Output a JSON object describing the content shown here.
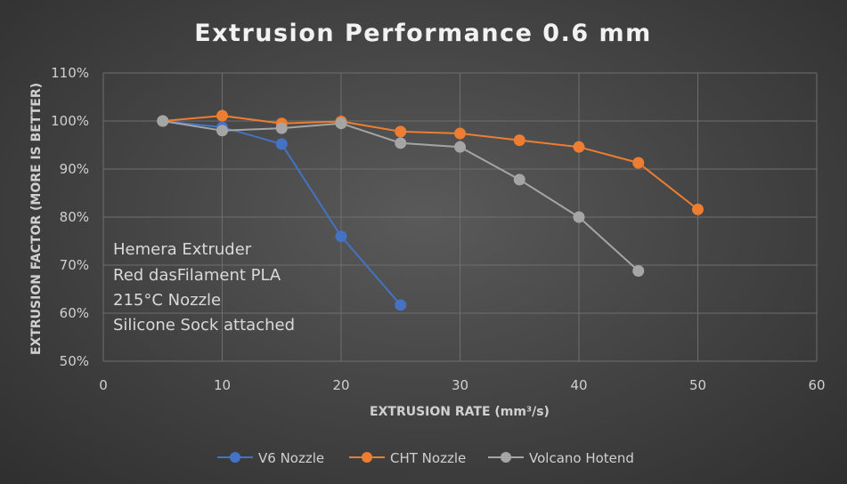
{
  "chart_data": {
    "type": "line",
    "title": "Extrusion Performance 0.6 mm",
    "xlabel": "EXTRUSION RATE (mm³/s)",
    "ylabel": "EXTRUSION FACTOR (MORE IS BETTER)",
    "xlim": [
      0,
      60
    ],
    "ylim": [
      50,
      110
    ],
    "xticks": [
      "0",
      "10",
      "20",
      "30",
      "40",
      "50",
      "60"
    ],
    "yticks": [
      "50%",
      "60%",
      "70%",
      "80%",
      "90%",
      "100%",
      "110%"
    ],
    "grid": true,
    "legend_position": "bottom",
    "annotation": [
      "Hemera Extruder",
      "Red dasFilament PLA",
      "215°C Nozzle",
      "Silicone Sock attached"
    ],
    "series": [
      {
        "name": "V6 Nozzle",
        "color": "#4472c4",
        "points": [
          [
            5,
            100
          ],
          [
            10,
            98.7
          ],
          [
            15,
            95.2
          ],
          [
            20,
            76
          ],
          [
            25,
            61.7
          ]
        ]
      },
      {
        "name": "CHT Nozzle",
        "color": "#ed7d31",
        "points": [
          [
            5,
            100
          ],
          [
            10,
            101.1
          ],
          [
            15,
            99.5
          ],
          [
            20,
            99.9
          ],
          [
            25,
            97.8
          ],
          [
            30,
            97.4
          ],
          [
            35,
            96
          ],
          [
            40,
            94.6
          ],
          [
            45,
            91.3
          ],
          [
            50,
            81.6
          ]
        ]
      },
      {
        "name": "Volcano Hotend",
        "color": "#a5a5a5",
        "points": [
          [
            5,
            100
          ],
          [
            10,
            98
          ],
          [
            15,
            98.5
          ],
          [
            20,
            99.5
          ],
          [
            25,
            95.4
          ],
          [
            30,
            94.6
          ],
          [
            35,
            87.8
          ],
          [
            40,
            80
          ],
          [
            45,
            68.8
          ]
        ]
      }
    ]
  }
}
